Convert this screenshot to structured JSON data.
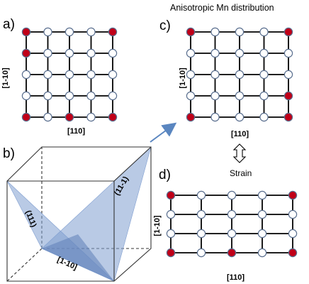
{
  "panels": {
    "a": {
      "label": "a)",
      "x_dir": "[110]",
      "y_dir": "[1-10]",
      "mn_sites": [
        [
          0,
          0
        ],
        [
          0,
          1
        ],
        [
          4,
          0
        ],
        [
          4,
          4
        ],
        [
          0,
          4
        ],
        [
          2,
          4
        ]
      ]
    },
    "b": {
      "label": "b)",
      "planes": [
        "(111)",
        "(11-1)",
        "[1-10]"
      ]
    },
    "c": {
      "label": "c)",
      "title": "Anisotropic Mn distribution",
      "x_dir": "[110]",
      "y_dir": "[1-10]",
      "mn_sites": [
        [
          0,
          0
        ],
        [
          4,
          0
        ],
        [
          0,
          4
        ],
        [
          4,
          4
        ],
        [
          4,
          3
        ]
      ]
    },
    "d": {
      "label": "d)",
      "x_dir": "[110]",
      "y_dir": "[1-10]",
      "mn_sites": [
        [
          0,
          0
        ],
        [
          4,
          0
        ],
        [
          0,
          3
        ],
        [
          4,
          3
        ],
        [
          2,
          3
        ]
      ]
    }
  },
  "strain_label": "Strain",
  "colors": {
    "mn": "#c00018",
    "plane": "#7f9ed0",
    "arrow": "#5a86c0"
  }
}
